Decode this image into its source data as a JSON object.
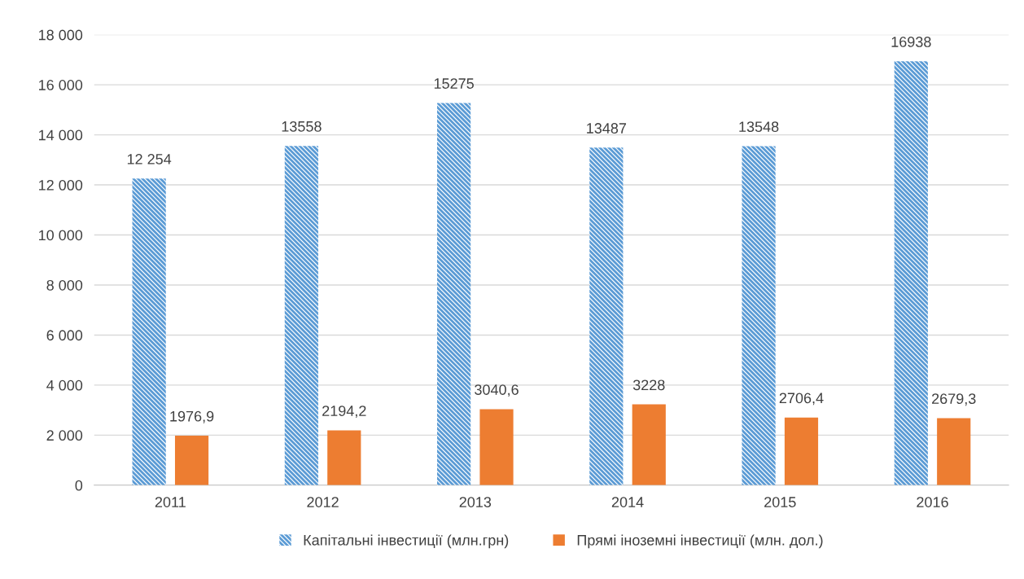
{
  "chart_data": {
    "type": "bar",
    "categories": [
      "2011",
      "2012",
      "2013",
      "2014",
      "2015",
      "2016"
    ],
    "series": [
      {
        "name": "Капітальні інвестиції (млн.грн)",
        "color": "#5b9bd5",
        "values": [
          12254,
          13558,
          15275,
          13487,
          13548,
          16938
        ],
        "value_labels": [
          "12 254",
          "13558",
          "15275",
          "13487",
          "13548",
          "16938"
        ]
      },
      {
        "name": "Прямі іноземні інвестиції (млн. дол.)",
        "color": "#ed7d31",
        "values": [
          1976.9,
          2194.2,
          3040.6,
          3228,
          2706.4,
          2679.3
        ],
        "value_labels": [
          "1976,9",
          "2194,2",
          "3040,6",
          "3228",
          "2706,4",
          "2679,3"
        ]
      }
    ],
    "ylim": [
      0,
      18000
    ],
    "yticks": [
      0,
      {
        "value": 2000,
        "label": "2 000"
      },
      {
        "value": 4000,
        "label": "4 000"
      },
      {
        "value": 6000,
        "label": "6 000"
      },
      {
        "value": 8000,
        "label": "8 000"
      },
      {
        "value": 10000,
        "label": "10 000"
      },
      {
        "value": 12000,
        "label": "12 000"
      },
      {
        "value": 14000,
        "label": "14 000"
      },
      {
        "value": 16000,
        "label": "16 000"
      },
      {
        "value": 18000,
        "label": "18 000"
      }
    ],
    "grid": "y",
    "legend": "bottom"
  }
}
